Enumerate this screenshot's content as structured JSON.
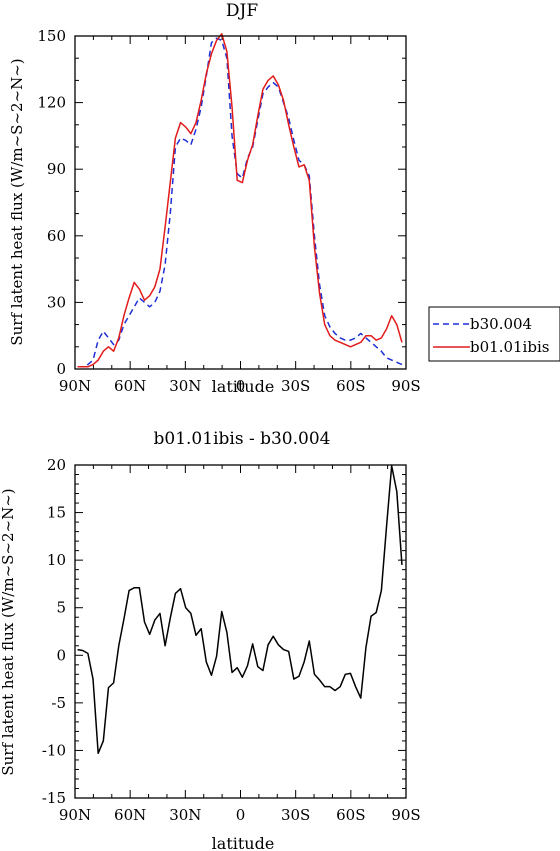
{
  "chart_data": [
    {
      "type": "line",
      "title": "DJF",
      "xlabel": "latitude",
      "ylabel": "Surf latent heat flux (W/m~S~2~N~)",
      "x_range": [
        90,
        -90
      ],
      "x_ticks": [
        90,
        60,
        30,
        0,
        -30,
        -60,
        -90
      ],
      "x_tick_labels": [
        "90N",
        "60N",
        "30N",
        "0",
        "30S",
        "60S",
        "90S"
      ],
      "ylim": [
        0,
        150
      ],
      "y_ticks": [
        0,
        30,
        60,
        90,
        120,
        150
      ],
      "legend_position": "right",
      "series": [
        {
          "name": "b30.004",
          "color": "#1f2fd6",
          "dash": true,
          "x": [
            88.6,
            85.8,
            83.0,
            80.2,
            77.4,
            74.6,
            71.8,
            69.0,
            66.2,
            63.4,
            60.6,
            57.8,
            55.0,
            52.2,
            49.4,
            46.6,
            43.8,
            41.0,
            38.2,
            35.4,
            32.6,
            29.8,
            27.0,
            24.2,
            21.4,
            18.6,
            15.8,
            13.0,
            10.2,
            7.4,
            4.6,
            1.8,
            -1.0,
            -3.8,
            -6.6,
            -9.4,
            -12.2,
            -15.0,
            -17.8,
            -20.6,
            -23.4,
            -26.2,
            -29.0,
            -31.8,
            -34.6,
            -37.4,
            -40.2,
            -43.0,
            -45.8,
            -48.6,
            -51.4,
            -54.2,
            -57.0,
            -59.8,
            -62.6,
            -65.4,
            -68.2,
            -71.0,
            -73.8,
            -76.6,
            -79.4,
            -82.2,
            -85.0,
            -87.8
          ],
          "values": [
            1,
            1,
            2,
            4,
            13,
            17,
            14,
            11,
            13,
            20,
            24,
            28,
            32,
            30,
            28,
            30,
            35,
            47,
            70,
            100,
            104,
            103,
            101,
            108,
            118,
            132,
            147,
            149,
            148,
            140,
            105,
            88,
            86,
            95,
            100,
            112,
            124,
            127,
            129,
            127,
            120,
            113,
            103,
            94,
            92,
            87,
            60,
            38,
            24,
            19,
            16,
            14,
            13,
            13,
            14,
            16,
            14,
            12,
            10,
            8,
            5,
            4,
            3,
            2
          ]
        },
        {
          "name": "b01.01ibis",
          "color": "#e21b1b",
          "dash": false,
          "x": [
            88.6,
            85.8,
            83.0,
            80.2,
            77.4,
            74.6,
            71.8,
            69.0,
            66.2,
            63.4,
            60.6,
            57.8,
            55.0,
            52.2,
            49.4,
            46.6,
            43.8,
            41.0,
            38.2,
            35.4,
            32.6,
            29.8,
            27.0,
            24.2,
            21.4,
            18.6,
            15.8,
            13.0,
            10.2,
            7.4,
            4.6,
            1.8,
            -1.0,
            -3.8,
            -6.6,
            -9.4,
            -12.2,
            -15.0,
            -17.8,
            -20.6,
            -23.4,
            -26.2,
            -29.0,
            -31.8,
            -34.6,
            -37.4,
            -40.2,
            -43.0,
            -45.8,
            -48.6,
            -51.4,
            -54.2,
            -57.0,
            -59.8,
            -62.6,
            -65.4,
            -68.2,
            -71.0,
            -73.8,
            -76.6,
            -79.4,
            -82.2,
            -85.0,
            -87.8
          ],
          "values": [
            1,
            1,
            1,
            2,
            4,
            8,
            10,
            8,
            14,
            24,
            32,
            39,
            36,
            31,
            33,
            37,
            45,
            64,
            84,
            104,
            111,
            109,
            106,
            111,
            121,
            133,
            142,
            148,
            151,
            143,
            118,
            85,
            84,
            94,
            101,
            114,
            126,
            130,
            132,
            128,
            121,
            110,
            100,
            91,
            92,
            85,
            55,
            34,
            20,
            15,
            13,
            12,
            11,
            10,
            11,
            12,
            15,
            15,
            13,
            14,
            18,
            24,
            20,
            12
          ]
        }
      ]
    },
    {
      "type": "line",
      "title": "b01.01ibis - b30.004",
      "xlabel": "latitude",
      "ylabel": "Surf latent heat flux (W/m~S~2~N~)",
      "x_range": [
        90,
        -90
      ],
      "x_ticks": [
        90,
        60,
        30,
        0,
        -30,
        -60,
        -90
      ],
      "x_tick_labels": [
        "90N",
        "60N",
        "30N",
        "0",
        "30S",
        "60S",
        "90S"
      ],
      "ylim": [
        -15,
        20
      ],
      "y_ticks": [
        -15,
        -10,
        -5,
        0,
        5,
        10,
        15,
        20
      ],
      "series": [
        {
          "color": "#000000",
          "dash": false,
          "x": [
            88.6,
            85.8,
            83.0,
            80.2,
            77.4,
            74.6,
            71.8,
            69.0,
            66.2,
            63.4,
            60.6,
            57.8,
            55.0,
            52.2,
            49.4,
            46.6,
            43.8,
            41.0,
            38.2,
            35.4,
            32.6,
            29.8,
            27.0,
            24.2,
            21.4,
            18.6,
            15.8,
            13.0,
            10.2,
            7.4,
            4.6,
            1.8,
            -1.0,
            -3.8,
            -6.6,
            -9.4,
            -12.2,
            -15.0,
            -17.8,
            -20.6,
            -23.4,
            -26.2,
            -29.0,
            -31.8,
            -34.6,
            -37.4,
            -40.2,
            -43.0,
            -45.8,
            -48.6,
            -51.4,
            -54.2,
            -57.0,
            -59.8,
            -62.6,
            -65.4,
            -68.2,
            -71.0,
            -73.8,
            -76.6,
            -79.4,
            -82.2,
            -85.0,
            -87.8
          ],
          "values": [
            0.6,
            0.5,
            0.2,
            -2.5,
            -10.3,
            -9.0,
            -3.4,
            -2.9,
            1.0,
            3.8,
            6.8,
            7.1,
            7.1,
            3.5,
            2.2,
            3.7,
            4.4,
            1.0,
            3.9,
            6.5,
            7.0,
            5.0,
            4.4,
            2.1,
            2.8,
            -0.7,
            -2.1,
            -0.1,
            4.6,
            2.4,
            -1.8,
            -1.3,
            -2.3,
            -1.1,
            1.2,
            -1.2,
            -1.6,
            1.1,
            2.0,
            1.1,
            0.6,
            0.4,
            -2.5,
            -2.2,
            -0.7,
            1.5,
            -2.0,
            -2.6,
            -3.3,
            -3.3,
            -3.7,
            -3.3,
            -2.0,
            -1.9,
            -3.3,
            -4.5,
            0.8,
            4.1,
            4.5,
            6.8,
            13.5,
            19.9,
            17.2,
            9.5
          ]
        }
      ]
    }
  ]
}
